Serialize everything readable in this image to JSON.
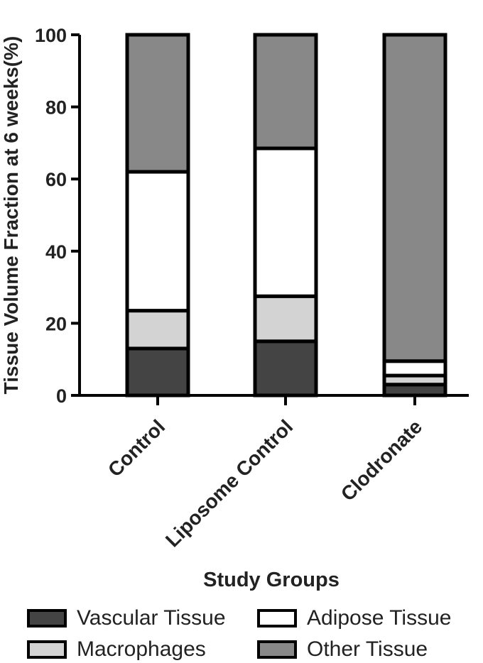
{
  "chart_data": {
    "type": "bar",
    "stacked": true,
    "ylabel": "Tissue Volume Fraction at 6 weeks(%)",
    "xlabel": "Study Groups",
    "ylim": [
      0,
      100
    ],
    "yticks": [
      0,
      20,
      40,
      60,
      80,
      100
    ],
    "categories": [
      "Control",
      "Liposome Control",
      "Clodronate"
    ],
    "series": [
      {
        "name": "Vascular Tissue",
        "color": "#444444",
        "values": [
          13,
          15,
          3
        ]
      },
      {
        "name": "Macrophages",
        "color": "#d3d3d3",
        "values": [
          10.5,
          12.5,
          2.5
        ]
      },
      {
        "name": "Adipose Tissue",
        "color": "#ffffff",
        "values": [
          38.5,
          41,
          4
        ]
      },
      {
        "name": "Other Tissue",
        "color": "#888888",
        "values": [
          38,
          31.5,
          90.5
        ]
      }
    ],
    "legend": {
      "placement": "bottom",
      "columns": [
        [
          "Vascular Tissue",
          "Macrophages"
        ],
        [
          "Adipose Tissue",
          "Other Tissue"
        ]
      ]
    }
  }
}
